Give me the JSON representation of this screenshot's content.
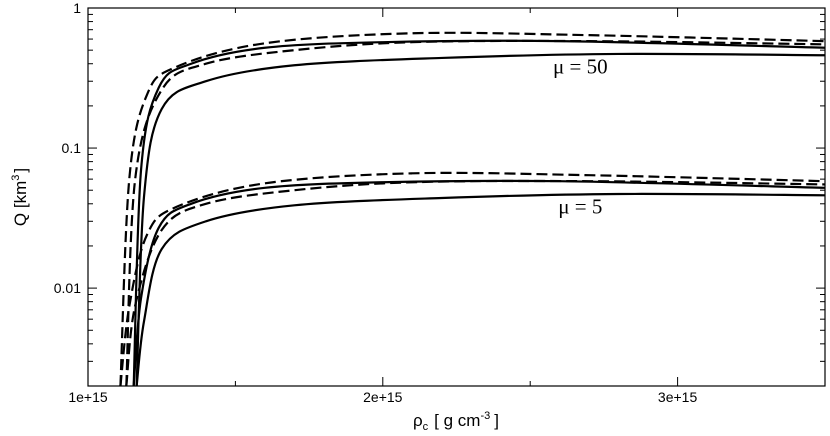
{
  "chart_data": {
    "type": "line",
    "xlabel_main": "ρ",
    "xlabel_sub": "c",
    "xlabel_unit_pre": "[ g cm",
    "xlabel_unit_sup": "-3",
    "xlabel_unit_post": "]",
    "ylabel_main": "Q [km",
    "ylabel_sup": "3",
    "ylabel_post": "]",
    "xlim": [
      1000000000000000.0,
      3500000000000000.0
    ],
    "ylim": [
      0.002,
      1.0
    ],
    "yscale": "log",
    "grid": false,
    "legend": "none",
    "x_ticks": [
      {
        "value": 1000000000000000.0,
        "label": "1e+15"
      },
      {
        "value": 2000000000000000.0,
        "label": "2e+15"
      },
      {
        "value": 3000000000000000.0,
        "label": "3e+15"
      }
    ],
    "y_ticks": [
      {
        "value": 0.01,
        "label": "0.01"
      },
      {
        "value": 0.1,
        "label": "0.1"
      },
      {
        "value": 1.0,
        "label": "1"
      }
    ],
    "annotations": [
      {
        "text": "μ = 50",
        "x": 2670000000000000.0,
        "y": 0.34
      },
      {
        "text": "μ = 5",
        "x": 2670000000000000.0,
        "y": 0.034
      }
    ],
    "series": [
      {
        "style": "solid",
        "x": [
          1165000000000000.0,
          1190000000000000.0,
          1250000000000000.0,
          1400000000000000.0,
          1700000000000000.0,
          2200000000000000.0,
          2800000000000000.0,
          3500000000000000.0
        ],
        "y": [
          0.002,
          0.045,
          0.19,
          0.3,
          0.39,
          0.44,
          0.47,
          0.46
        ]
      },
      {
        "style": "solid",
        "x": [
          1155000000000000.0,
          1180000000000000.0,
          1240000000000000.0,
          1350000000000000.0,
          1600000000000000.0,
          2000000000000000.0,
          2600000000000000.0,
          3500000000000000.0
        ],
        "y": [
          0.002,
          0.07,
          0.27,
          0.4,
          0.52,
          0.57,
          0.58,
          0.52
        ]
      },
      {
        "style": "dashed",
        "x": [
          1130000000000000.0,
          1160000000000000.0,
          1250000000000000.0,
          1400000000000000.0,
          1700000000000000.0,
          2100000000000000.0,
          2700000000000000.0,
          3500000000000000.0
        ],
        "y": [
          0.002,
          0.06,
          0.26,
          0.4,
          0.5,
          0.57,
          0.58,
          0.55
        ]
      },
      {
        "style": "dashed",
        "x": [
          1110000000000000.0,
          1140000000000000.0,
          1200000000000000.0,
          1300000000000000.0,
          1600000000000000.0,
          2100000000000000.0,
          2700000000000000.0,
          3500000000000000.0
        ],
        "y": [
          0.002,
          0.06,
          0.24,
          0.38,
          0.56,
          0.66,
          0.64,
          0.58
        ]
      },
      {
        "style": "solid",
        "x": [
          1165000000000000.0,
          1190000000000000.0,
          1250000000000000.0,
          1400000000000000.0,
          1700000000000000.0,
          2200000000000000.0,
          2800000000000000.0,
          3500000000000000.0
        ],
        "y": [
          0.002,
          0.0058,
          0.019,
          0.03,
          0.039,
          0.044,
          0.047,
          0.046
        ]
      },
      {
        "style": "solid",
        "x": [
          1155000000000000.0,
          1180000000000000.0,
          1240000000000000.0,
          1350000000000000.0,
          1600000000000000.0,
          2000000000000000.0,
          2600000000000000.0,
          3500000000000000.0
        ],
        "y": [
          0.002,
          0.0085,
          0.027,
          0.04,
          0.052,
          0.057,
          0.058,
          0.052
        ]
      },
      {
        "style": "dashed",
        "x": [
          1130000000000000.0,
          1160000000000000.0,
          1250000000000000.0,
          1400000000000000.0,
          1700000000000000.0,
          2100000000000000.0,
          2700000000000000.0,
          3500000000000000.0
        ],
        "y": [
          0.002,
          0.0075,
          0.026,
          0.04,
          0.05,
          0.057,
          0.058,
          0.055
        ]
      },
      {
        "style": "dashed",
        "x": [
          1110000000000000.0,
          1140000000000000.0,
          1200000000000000.0,
          1300000000000000.0,
          1600000000000000.0,
          2100000000000000.0,
          2700000000000000.0,
          3500000000000000.0
        ],
        "y": [
          0.002,
          0.0074,
          0.024,
          0.038,
          0.056,
          0.066,
          0.064,
          0.058
        ]
      }
    ]
  }
}
